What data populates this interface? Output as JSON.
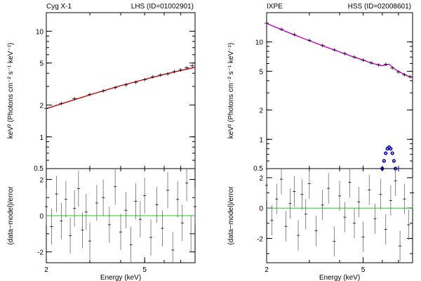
{
  "chart_data": [
    {
      "type": "line",
      "source_label": "Cyg X-1",
      "state_label": "LHS (ID=01002901)",
      "upper_ylabel": "keV² (Photons cm⁻² s⁻¹ keV⁻¹)",
      "lower_ylabel": "(data−model)/error",
      "xlabel": "Energy (keV)",
      "xlim": [
        2,
        8
      ],
      "x_log": true,
      "x_ticks": [
        2,
        5
      ],
      "upper_ylim": [
        0.5,
        15
      ],
      "upper_y_log": true,
      "upper_y_ticks": [
        1,
        2,
        5,
        10
      ],
      "upper_y_bottom_label": "0.5",
      "lower_ylim": [
        -2.6,
        2.6
      ],
      "lower_y_ticks": [
        -2,
        0,
        2
      ],
      "series": [
        {
          "role": "model",
          "color": "#cc0000",
          "x": [
            2,
            3,
            4,
            5,
            6,
            7,
            8
          ],
          "y": [
            1.85,
            2.5,
            3.05,
            3.5,
            3.9,
            4.25,
            4.55
          ]
        },
        {
          "role": "data",
          "color": "#000000",
          "x": [
            2.0,
            2.3,
            2.6,
            3.0,
            3.4,
            3.8,
            4.2,
            4.6,
            5.0,
            5.4,
            5.8,
            6.2,
            6.6,
            7.0,
            7.4,
            7.8
          ],
          "y": [
            1.86,
            2.07,
            2.3,
            2.52,
            2.72,
            2.92,
            3.1,
            3.28,
            3.48,
            3.7,
            3.85,
            3.95,
            4.15,
            4.3,
            4.5,
            4.7
          ]
        },
        {
          "role": "residual_zero",
          "color": "#22cc22",
          "x": [
            2,
            8
          ],
          "y": [
            0,
            0
          ]
        },
        {
          "role": "residuals",
          "color": "#000000",
          "x": [
            2.0,
            2.1,
            2.2,
            2.3,
            2.4,
            2.5,
            2.6,
            2.7,
            2.8,
            2.9,
            3.0,
            3.2,
            3.4,
            3.6,
            3.8,
            4.0,
            4.2,
            4.4,
            4.6,
            4.8,
            5.0,
            5.3,
            5.6,
            5.9,
            6.2,
            6.5,
            6.8,
            7.1,
            7.4,
            7.7,
            8.0
          ],
          "y": [
            0.5,
            -0.6,
            1.2,
            -0.3,
            0.9,
            -1.1,
            0.4,
            1.5,
            -0.8,
            0.2,
            -1.4,
            0.7,
            1.0,
            -0.5,
            1.6,
            -0.9,
            0.3,
            -1.6,
            0.8,
            -0.2,
            1.1,
            -1.2,
            0.6,
            -0.7,
            1.4,
            -1.9,
            0.9,
            -0.4,
            1.8,
            -1.0,
            0.5
          ]
        }
      ]
    },
    {
      "type": "line",
      "source_label": "IXPE",
      "state_label": "HSS (ID=02008601)",
      "upper_ylabel": "keV² (Photons cm⁻² s⁻¹ keV⁻¹)",
      "lower_ylabel": "(data−model)/error",
      "xlabel": "Energy (keV)",
      "xlim": [
        2,
        8
      ],
      "x_log": true,
      "x_ticks": [
        2,
        5
      ],
      "upper_ylim": [
        0.5,
        20
      ],
      "upper_y_log": true,
      "upper_y_ticks": [
        1,
        2,
        5,
        10
      ],
      "upper_y_bottom_label": "0.5",
      "lower_ylim": [
        -3.6,
        2.6
      ],
      "lower_y_ticks": [
        -2,
        0,
        2
      ],
      "series": [
        {
          "role": "model",
          "color": "#cc00cc",
          "x": [
            2.0,
            2.5,
            3.0,
            3.5,
            4.0,
            4.5,
            5.0,
            5.5,
            6.0,
            6.4,
            6.8,
            7.2,
            7.6,
            8.0
          ],
          "y": [
            15.5,
            12.3,
            10.3,
            8.9,
            7.9,
            7.1,
            6.5,
            6.0,
            5.7,
            5.9,
            5.2,
            4.8,
            4.5,
            4.3
          ]
        },
        {
          "role": "data",
          "color": "#000000",
          "x": [
            2.0,
            2.3,
            2.6,
            3.0,
            3.4,
            3.8,
            4.2,
            4.6,
            5.0,
            5.4,
            5.8,
            6.2,
            6.6,
            7.0,
            7.4,
            7.8
          ],
          "y": [
            15.6,
            13.5,
            11.9,
            10.4,
            9.2,
            8.3,
            7.6,
            7.0,
            6.5,
            6.1,
            5.8,
            5.9,
            5.4,
            4.9,
            4.6,
            4.4
          ]
        },
        {
          "role": "line_component",
          "color": "#0000aa",
          "x": [
            6.0,
            6.1,
            6.2,
            6.3,
            6.4,
            6.5,
            6.6,
            6.7,
            6.8
          ],
          "y": [
            0.5,
            0.6,
            0.72,
            0.8,
            0.83,
            0.8,
            0.72,
            0.6,
            0.5
          ]
        },
        {
          "role": "residual_zero",
          "color": "#22cc22",
          "x": [
            2,
            8
          ],
          "y": [
            0,
            0
          ]
        },
        {
          "role": "residuals",
          "color": "#000000",
          "x": [
            2.0,
            2.1,
            2.2,
            2.3,
            2.4,
            2.5,
            2.6,
            2.7,
            2.8,
            2.9,
            3.0,
            3.2,
            3.4,
            3.6,
            3.8,
            4.0,
            4.2,
            4.4,
            4.6,
            4.8,
            5.0,
            5.3,
            5.6,
            5.9,
            6.2,
            6.5,
            6.8,
            7.1,
            7.4,
            7.7,
            8.0
          ],
          "y": [
            1.5,
            -0.8,
            0.6,
            1.9,
            -1.2,
            0.3,
            1.1,
            -1.8,
            0.9,
            -0.4,
            1.6,
            -1.5,
            0.2,
            1.3,
            -2.2,
            0.8,
            -0.6,
            1.7,
            -1.0,
            0.4,
            -1.9,
            1.2,
            -0.7,
            0.9,
            -1.4,
            0.5,
            1.8,
            -2.5,
            0.6,
            -1.1,
            1.0
          ]
        }
      ]
    }
  ]
}
